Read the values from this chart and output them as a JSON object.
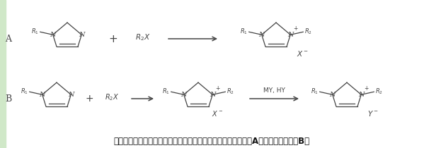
{
  "bg_color": "#ffffff",
  "line_color": "#444444",
  "caption": "离子液体的合成方法（以咪唑类离子液体为例）：直接合成法（A）和两步合成法（B）",
  "caption_fontsize": 8.5,
  "label_A": "A",
  "label_B": "B",
  "figsize": [
    5.99,
    2.1
  ],
  "dpi": 100,
  "ring_scale": 0.3,
  "lw": 0.9
}
